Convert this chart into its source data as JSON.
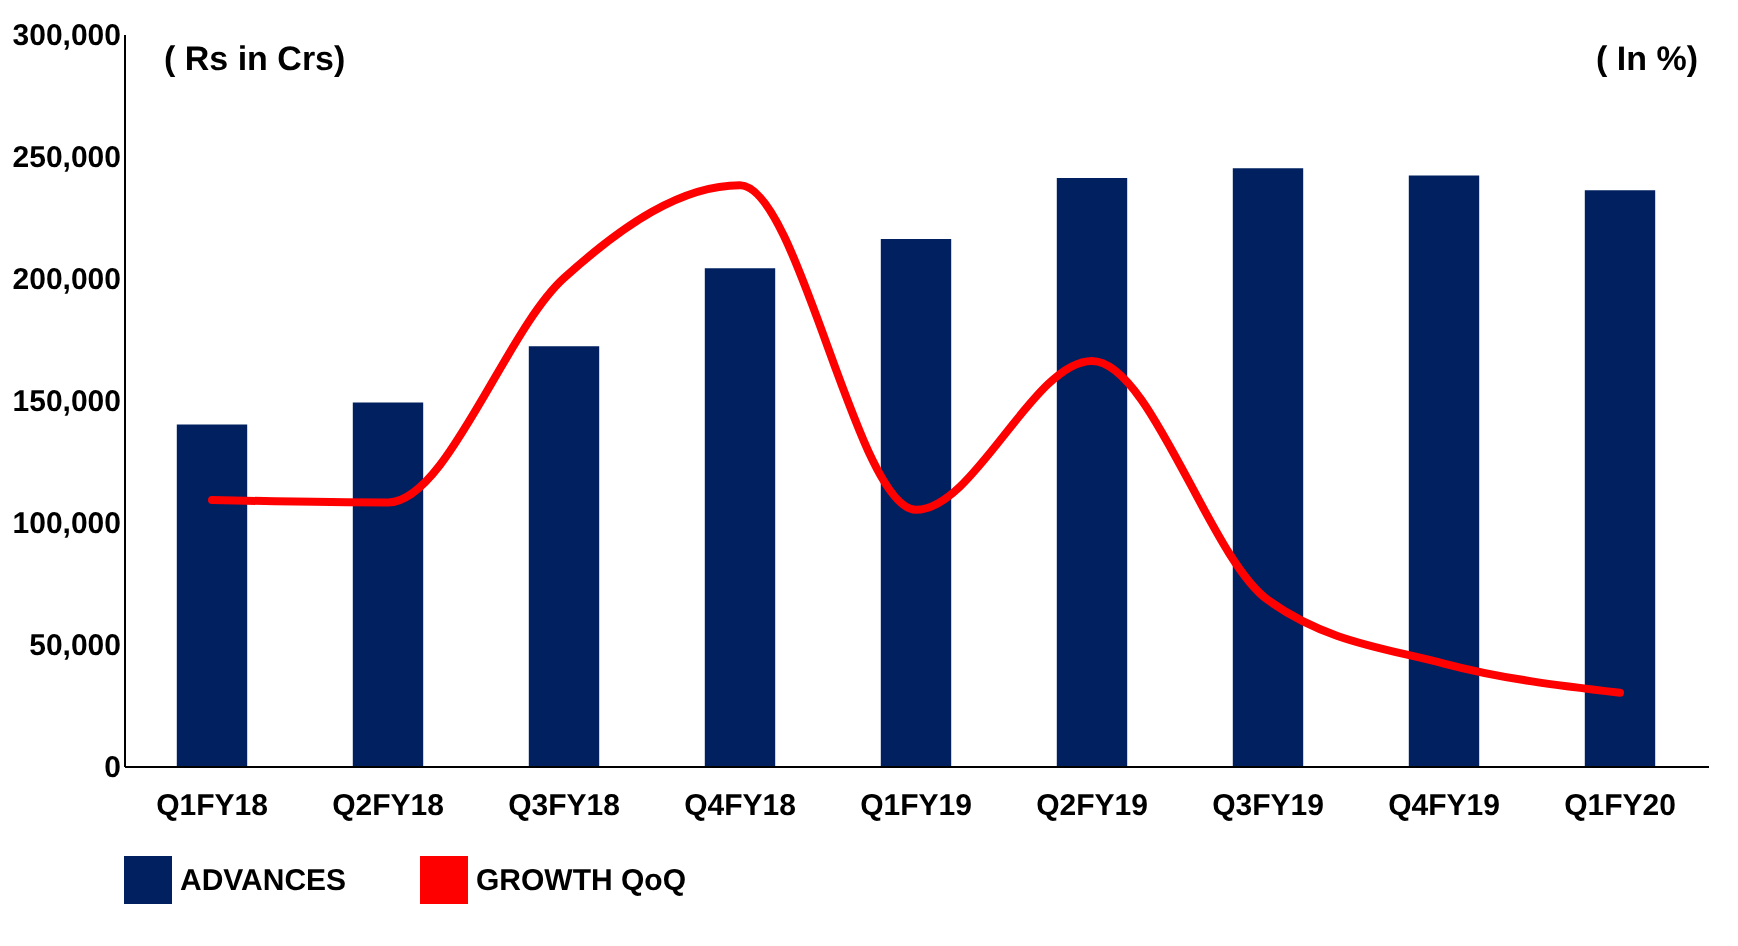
{
  "chart_data": {
    "type": "bar",
    "categories": [
      "Q1FY18",
      "Q2FY18",
      "Q3FY18",
      "Q4FY18",
      "Q1FY19",
      "Q2FY19",
      "Q3FY19",
      "Q4FY19",
      "Q1FY20"
    ],
    "series": [
      {
        "name": "ADVANCES",
        "color": "#002060",
        "values": [
          140000,
          149000,
          172000,
          204000,
          216000,
          241000,
          245000,
          242000,
          236000
        ]
      },
      {
        "name": "GROWTH QoQ",
        "type": "line",
        "color": "#ff0000",
        "values": [
          109000,
          108000,
          200000,
          238000,
          105000,
          166000,
          68000,
          42000,
          30000
        ]
      }
    ],
    "annotations": [
      "( Rs in Crs)",
      "( In %)"
    ],
    "ylim": [
      0,
      300000
    ],
    "yticks": [
      0,
      {
        "value": 50000,
        "label": "50,000"
      },
      {
        "value": 100000,
        "label": "100,000"
      },
      {
        "value": 150000,
        "label": "150,000"
      },
      {
        "value": 200000,
        "label": "200,000"
      },
      {
        "value": 250000,
        "label": "250,000"
      },
      {
        "value": 300000,
        "label": "300,000"
      }
    ],
    "grid": false,
    "legend": "bottom"
  }
}
